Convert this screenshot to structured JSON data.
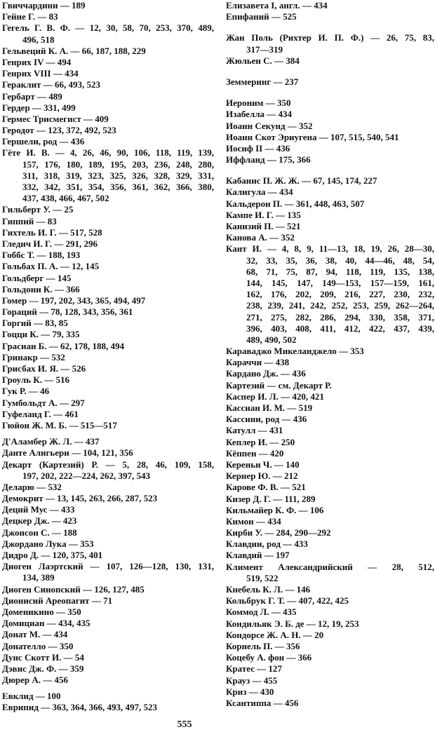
{
  "columns": [
    [
      [
        [
          "Гвиччардини — 189"
        ],
        [
          "Гейне Г. — 83"
        ],
        [
          "Гегель Г. В. Ф. — 12, 30, 58, 70, 253, 370, 489,",
          "496, 518"
        ],
        [
          "Гельвеций К. А. — 66, 187, 188, 229"
        ],
        [
          "Генрих IV — 494"
        ],
        [
          "Генрих VIII — 434"
        ],
        [
          "Гераклит — 66, 493, 523"
        ],
        [
          "Гербарт — 489"
        ],
        [
          "Гердер — 331, 499"
        ],
        [
          "Гермес Трисмегист — 409"
        ],
        [
          "Геродот — 123, 372, 492, 523"
        ],
        [
          "Гершели, род — 436"
        ],
        [
          "Гёте И. В. — 4, 26, 46, 90, 106, 118, 119, 139,",
          "157, 176, 180, 189, 195, 203, 236, 248, 280,",
          "311, 318, 319, 323, 325, 326, 328, 329, 331,",
          "332, 342, 351, 354, 356, 361, 362, 366, 380,",
          "437, 438, 466, 467, 502"
        ],
        [
          "Гильберт У. — 25"
        ],
        [
          "Гиппий — 83"
        ],
        [
          "Гихтель И. Г. — 517, 528"
        ],
        [
          "Гледич И. Г. — 291, 296"
        ],
        [
          "Гоббс Т. — 188, 193"
        ],
        [
          "Гольбах П. А. — 12, 145"
        ],
        [
          "Гольдберг — 145"
        ],
        [
          "Гольдони К. — 366"
        ],
        [
          "Гомер — 197, 202, 343, 365, 494, 497"
        ],
        [
          "Гораций — 78, 128, 343, 356, 361"
        ],
        [
          "Горгий — 83, 85"
        ],
        [
          "Гоцци К. — 79, 335"
        ],
        [
          "Грасиан Б. — 62, 178, 188, 494"
        ],
        [
          "Гринакр — 532"
        ],
        [
          "Грисбах И. Я. — 526"
        ],
        [
          "Гроуль К. — 516"
        ],
        [
          "Гук Р. — 46"
        ],
        [
          "Гумбольдт А. — 297"
        ],
        [
          "Гуфеланд Г. — 461"
        ],
        [
          "Гюйон Ж. М. Б. — 515—517"
        ]
      ],
      [
        [
          "Д'Аламбер Ж. Л. — 437"
        ],
        [
          "Данте Алигьери — 104, 121, 356"
        ],
        [
          "Декарт (Картезий) Р. — 5, 28, 46, 109, 158,",
          "197, 202, 222—224, 262, 397, 543"
        ],
        [
          "Деларю — 532"
        ],
        [
          "Демокрит — 13, 145, 263, 266, 287, 523"
        ],
        [
          "Деций Мус — 433"
        ],
        [
          "Децкер Дж. — 423"
        ],
        [
          "Джонсон С. — 188"
        ],
        [
          "Джордано Лука — 353"
        ],
        [
          "Дидро Д. — 120, 375, 401"
        ],
        [
          "Диоген Лаэртский — 107, 126—128, 130, 131,",
          "134, 389"
        ],
        [
          "Диоген Синопский — 126, 127, 485"
        ],
        [
          "Дионисий Ареопагит — 71"
        ],
        [
          "Доменикино — 350"
        ],
        [
          "Домициан — 434, 435"
        ],
        [
          "Донат М. — 434"
        ],
        [
          "Донателло — 350"
        ],
        [
          "Дунс Скотт И. — 54"
        ],
        [
          "Дэвис Дж. Ф. — 359"
        ],
        [
          "Дюрер А. — 456"
        ]
      ],
      [
        [
          "Евклид — 100"
        ],
        [
          "Еврипид — 363, 364, 366, 493, 497, 523"
        ]
      ]
    ],
    [
      [
        [
          "Елизавета I, англ. — 434"
        ],
        [
          "Епифаний — 525"
        ]
      ],
      [
        [
          "Жан Поль (Рихтер И. П. Ф.) — 26, 75, 83,",
          "317—319"
        ],
        [
          "Жюльен С. — 384"
        ]
      ],
      [
        [
          "Земмеринг — 237"
        ]
      ],
      [
        [
          "Иероним — 350"
        ],
        [
          "Изабелла — 434"
        ],
        [
          "Иоанн Секунд — 352"
        ],
        [
          "Иоанн Скот Эриугена — 107, 515, 540, 541"
        ],
        [
          "Иосиф II — 436"
        ],
        [
          "Иффланд — 175, 366"
        ]
      ],
      [
        [
          "Кабанис П. Ж. Ж. — 67, 145, 174, 227"
        ],
        [
          "Калигула — 434"
        ],
        [
          "Кальдерон П. — 361, 448, 463, 507"
        ],
        [
          "Кампе И. Г. — 135"
        ],
        [
          "Канизий П. — 521"
        ],
        [
          "Канова А. — 352"
        ],
        [
          "Кант И. — 4, 8, 9, 11—13, 18, 19, 26, 28—30,",
          "32, 33, 35, 36, 38, 40, 44—46, 48, 54,",
          "68, 71, 75, 87, 94, 118, 119, 135, 138,",
          "144, 145, 147, 149—153, 157—159, 161,",
          "162, 176, 202, 209, 216, 227, 230, 232,",
          "238, 239, 241, 242, 252, 253, 259, 262—264,",
          "271, 275, 282, 286, 294, 330, 358, 371,",
          "396, 403, 408, 411, 412, 422, 437, 439,",
          "489, 490, 502"
        ],
        [
          "Караваджо Микеланджело — 353"
        ],
        [
          "Караччи — 438"
        ],
        [
          "Кардано Дж. — 436"
        ],
        [
          "Картезий — см. Декарт Р."
        ],
        [
          "Каспер И. Л. — 420, 421"
        ],
        [
          "Кассиан И. М. — 519"
        ],
        [
          "Кассини, род — 436"
        ],
        [
          "Катулл — 431"
        ],
        [
          "Кеплер И. — 250"
        ],
        [
          "Кёппен — 420"
        ],
        [
          "Кереньи Ч. — 140"
        ],
        [
          "Кернер Ю. — 212"
        ],
        [
          "Карове Ф. В. — 521"
        ],
        [
          "Кизер Д. Г. — 111, 289"
        ],
        [
          "Кильмайер К. Ф. — 106"
        ],
        [
          "Кимон — 434"
        ],
        [
          "Кирби У. — 284, 290—292"
        ],
        [
          "Клавдии, род — 433"
        ],
        [
          "Клавдий — 197"
        ],
        [
          "Климент Александрийский — 28, 512,",
          "519, 522"
        ],
        [
          "Кнебель К. Л. — 146"
        ],
        [
          "Кольбрук Г. Т. — 407, 422, 425"
        ],
        [
          "Коммод Л. — 435"
        ],
        [
          "Кондильяк Э. Б. де — 12, 19, 253"
        ],
        [
          "Кондорсе Ж. А. Н. — 20"
        ],
        [
          "Корнель П. — 356"
        ],
        [
          "Коцебу А. фон — 366"
        ],
        [
          "Кратес — 127"
        ],
        [
          "Крауз — 455"
        ],
        [
          "Криз — 430"
        ],
        [
          "Ксантиппа — 456"
        ]
      ]
    ]
  ],
  "page_number": "555"
}
